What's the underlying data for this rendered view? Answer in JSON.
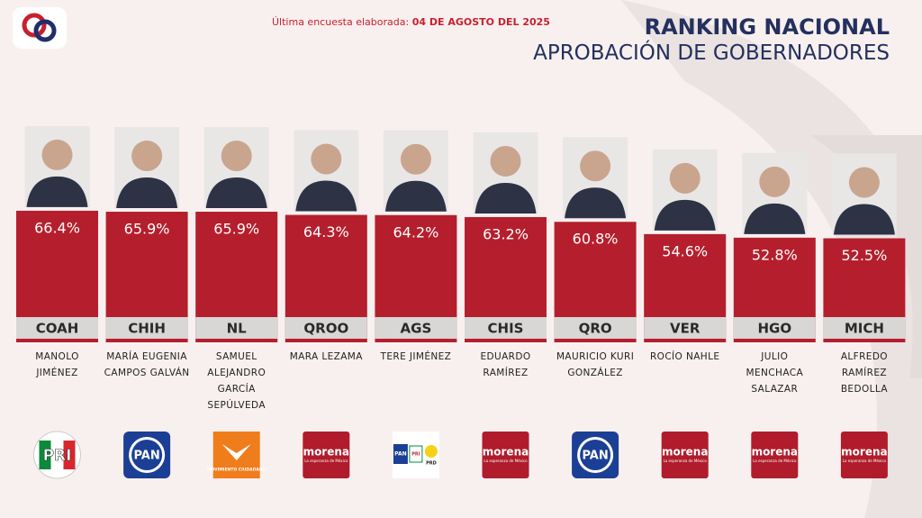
{
  "header": {
    "survey_label": "Última encuesta elaborada:",
    "survey_date": "04 DE AGOSTO DEL 2025",
    "title": "RANKING NACIONAL",
    "subtitle": "APROBACIÓN DE GOBERNADORES"
  },
  "chart_data": {
    "type": "bar",
    "color": "#b51f2d",
    "categories": [
      "COAH",
      "CHIH",
      "NL",
      "QROO",
      "AGS",
      "CHIS",
      "QRO",
      "VER",
      "HGO",
      "MICH"
    ],
    "values": [
      66.4,
      65.9,
      65.9,
      64.3,
      64.2,
      63.2,
      60.8,
      54.6,
      52.8,
      52.5
    ],
    "value_labels": [
      "66.4%",
      "65.9%",
      "65.9%",
      "64.3%",
      "64.2%",
      "63.2%",
      "60.8%",
      "54.6%",
      "52.8%",
      "52.5%"
    ],
    "names": [
      "MANOLO JIMÉNEZ",
      "MARÍA EUGENIA CAMPOS GALVÁN",
      "SAMUEL ALEJANDRO GARCÍA SEPÚLVEDA",
      "MARA LEZAMA",
      "TERE JIMÉNEZ",
      "EDUARDO RAMÍREZ",
      "MAURICIO KURI GONZÁLEZ",
      "ROCÍO NAHLE",
      "JULIO MENCHACA SALAZAR",
      "ALFREDO RAMÍREZ BEDOLLA"
    ],
    "parties": [
      [
        "PRI"
      ],
      [
        "PAN"
      ],
      [
        "MOVIMIENTO CIUDADANO"
      ],
      [
        "morena",
        "La esperanza de México"
      ],
      [
        "PAN",
        "PRI",
        "PRD"
      ],
      [
        "morena",
        "La esperanza de México"
      ],
      [
        "PAN"
      ],
      [
        "morena",
        "La esperanza de México"
      ],
      [
        "morena",
        "La esperanza de México"
      ],
      [
        "morena",
        "La esperanza de México"
      ]
    ]
  }
}
